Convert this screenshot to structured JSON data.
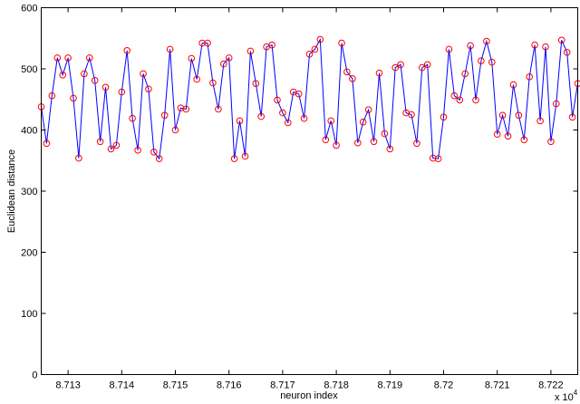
{
  "chart_data": {
    "type": "line",
    "title": "",
    "xlabel": "neuron index",
    "ylabel": "Euclidean distance",
    "x_multiplier_label": "x 10",
    "x_multiplier_exponent": "4",
    "xlim": [
      87125,
      87225
    ],
    "ylim": [
      0,
      600
    ],
    "xticks": [
      87130,
      87140,
      87150,
      87160,
      87170,
      87180,
      87190,
      87200,
      87210,
      87220
    ],
    "xtick_labels": [
      "8.713",
      "8.714",
      "8.715",
      "8.716",
      "8.717",
      "8.718",
      "8.719",
      "8.72",
      "8.721",
      "8.722"
    ],
    "yticks": [
      0,
      100,
      200,
      300,
      400,
      500,
      600
    ],
    "ytick_labels": [
      "0",
      "100",
      "200",
      "300",
      "400",
      "500",
      "600"
    ],
    "grid": false,
    "legend": null,
    "series": [
      {
        "name": "distance",
        "line_color": "#0000ff",
        "marker": "circle",
        "marker_color": "#ff0000",
        "x_start": 87125,
        "x_step": 1,
        "values": [
          438,
          378,
          456,
          518,
          490,
          518,
          452,
          354,
          492,
          518,
          481,
          381,
          470,
          369,
          375,
          462,
          530,
          419,
          367,
          492,
          467,
          364,
          353,
          424,
          532,
          400,
          436,
          434,
          517,
          483,
          542,
          542,
          477,
          434,
          508,
          518,
          353,
          415,
          357,
          529,
          476,
          422,
          536,
          539,
          449,
          428,
          412,
          462,
          459,
          419,
          524,
          532,
          548,
          384,
          415,
          375,
          542,
          495,
          484,
          379,
          413,
          433,
          381,
          493,
          394,
          369,
          502,
          507,
          428,
          425,
          378,
          502,
          507,
          354,
          353,
          421,
          532,
          456,
          449,
          492,
          538,
          449,
          513,
          545,
          511,
          393,
          424,
          390,
          474,
          424,
          384,
          487,
          539,
          415,
          536,
          381,
          443,
          547,
          527,
          421,
          476
        ]
      }
    ]
  }
}
